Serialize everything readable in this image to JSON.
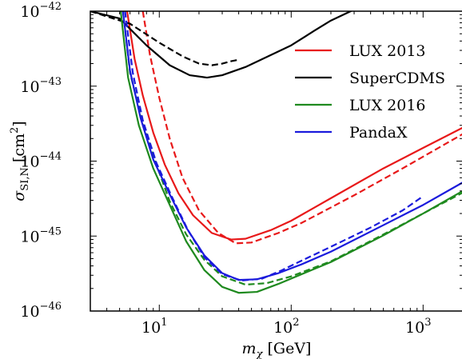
{
  "chart_data": {
    "type": "line",
    "xlabel": {
      "main": "m",
      "sub": "χ",
      "unit": "[GeV]"
    },
    "ylabel": {
      "main": "σ",
      "sub": "SI,N",
      "unit": "[cm",
      "unit_exp": "2",
      "unit_close": "]"
    },
    "xscale": "log",
    "yscale": "log",
    "xlim": [
      3,
      2000
    ],
    "ylim": [
      1e-46,
      1e-42
    ],
    "x_ticks": [
      {
        "base": "10",
        "exp": "1",
        "value": 10
      },
      {
        "base": "10",
        "exp": "2",
        "value": 100
      },
      {
        "base": "10",
        "exp": "3",
        "value": 1000
      }
    ],
    "y_ticks": [
      {
        "base": "10",
        "exp": "−42",
        "value": 1e-42
      },
      {
        "base": "10",
        "exp": "−43",
        "value": 1e-43
      },
      {
        "base": "10",
        "exp": "−44",
        "value": 1e-44
      },
      {
        "base": "10",
        "exp": "−45",
        "value": 1e-45
      },
      {
        "base": "10",
        "exp": "−46",
        "value": 1e-46
      }
    ],
    "grid": false,
    "legend_position": "top-right",
    "legend": [
      {
        "name": "LUX 2013",
        "color": "#e8191a"
      },
      {
        "name": "SuperCDMS",
        "color": "#000000"
      },
      {
        "name": "LUX 2016",
        "color": "#1f8a1f"
      },
      {
        "name": "PandaX",
        "color": "#1b1bdc"
      }
    ],
    "series": [
      {
        "name": "LUX 2013",
        "style": "solid",
        "color": "#e8191a",
        "x": [
          5.7,
          6.5,
          7.5,
          9,
          11,
          14,
          18,
          25,
          35,
          45,
          70,
          100,
          200,
          500,
          1000,
          2000
        ],
        "y": [
          1e-42,
          2.3e-43,
          7.5e-44,
          2.4e-44,
          9e-45,
          3.7e-45,
          1.9e-45,
          1.1e-45,
          9e-46,
          9.2e-46,
          1.2e-45,
          1.6e-45,
          3.2e-45,
          8e-45,
          1.5e-44,
          2.8e-44
        ]
      },
      {
        "name": "LUX 2013",
        "style": "dashed",
        "color": "#e8191a",
        "x": [
          7.5,
          8.5,
          10,
          12,
          15,
          20,
          28,
          38,
          50,
          80,
          120,
          300,
          700,
          2000
        ],
        "y": [
          1e-42,
          2.6e-43,
          7e-44,
          2e-44,
          6e-45,
          2.2e-45,
          1.1e-45,
          8e-46,
          8.2e-46,
          1.1e-45,
          1.5e-45,
          3.5e-45,
          8e-45,
          2.3e-44
        ]
      },
      {
        "name": "SuperCDMS",
        "style": "solid",
        "color": "#000000",
        "x": [
          3,
          5,
          8,
          12,
          17,
          23,
          30,
          45,
          70,
          100,
          150,
          200,
          300
        ],
        "y": [
          1e-42,
          8e-43,
          3.5e-43,
          1.9e-43,
          1.4e-43,
          1.3e-43,
          1.4e-43,
          1.8e-43,
          2.6e-43,
          3.5e-43,
          5.5e-43,
          7.5e-43,
          1.05e-42
        ]
      },
      {
        "name": "SuperCDMS",
        "style": "dashed",
        "color": "#000000",
        "x": [
          3,
          6,
          10,
          15,
          20,
          25,
          30,
          35,
          40
        ],
        "y": [
          1e-42,
          6.8e-43,
          3.8e-43,
          2.5e-43,
          2e-43,
          1.9e-43,
          2e-43,
          2.15e-43,
          2.25e-43
        ]
      },
      {
        "name": "LUX 2016",
        "style": "solid",
        "color": "#1f8a1f",
        "x": [
          5.1,
          5.8,
          7,
          9,
          12,
          16,
          22,
          30,
          40,
          55,
          80,
          120,
          200,
          500,
          1000,
          2000
        ],
        "y": [
          1e-42,
          1.3e-43,
          3e-44,
          8e-45,
          2.6e-45,
          8.5e-46,
          3.5e-46,
          2.1e-46,
          1.75e-46,
          1.8e-46,
          2.3e-46,
          3.1e-46,
          4.5e-46,
          1.02e-45,
          2e-45,
          4e-45
        ]
      },
      {
        "name": "LUX 2016",
        "style": "dashed",
        "color": "#1f8a1f",
        "x": [
          5.3,
          6,
          7.5,
          9.5,
          12,
          16,
          22,
          30,
          45,
          65,
          100,
          200,
          500,
          1000,
          2000
        ],
        "y": [
          1e-42,
          1.5e-43,
          3.2e-44,
          9e-45,
          2.9e-45,
          1.05e-45,
          4.8e-46,
          2.9e-46,
          2.25e-46,
          2.35e-46,
          2.9e-46,
          4.6e-46,
          1.05e-45,
          2e-45,
          3.8e-45
        ]
      },
      {
        "name": "PandaX",
        "style": "solid",
        "color": "#1b1bdc",
        "x": [
          5.3,
          6,
          7.2,
          9,
          12,
          16,
          22,
          30,
          40,
          55,
          80,
          120,
          200,
          500,
          1000,
          2000
        ],
        "y": [
          1e-42,
          1.6e-43,
          3.8e-44,
          1.05e-44,
          3.6e-45,
          1.3e-45,
          5.5e-46,
          3.2e-46,
          2.6e-46,
          2.65e-46,
          3.2e-46,
          4.2e-46,
          6.2e-46,
          1.4e-45,
          2.6e-45,
          5.2e-45
        ]
      },
      {
        "name": "PandaX",
        "style": "dashed",
        "color": "#1b1bdc",
        "x": [
          5.5,
          6.3,
          7.5,
          9.5,
          12.5,
          16.5,
          22,
          30,
          42,
          60,
          85,
          120,
          200,
          400,
          700,
          1000
        ],
        "y": [
          1e-42,
          1.5e-43,
          3.5e-44,
          9.5e-45,
          3.3e-45,
          1.2e-45,
          5.2e-46,
          3.1e-46,
          2.55e-46,
          2.7e-46,
          3.5e-46,
          4.7e-46,
          7.2e-46,
          1.3e-45,
          2.2e-45,
          3.4e-45
        ]
      }
    ]
  }
}
